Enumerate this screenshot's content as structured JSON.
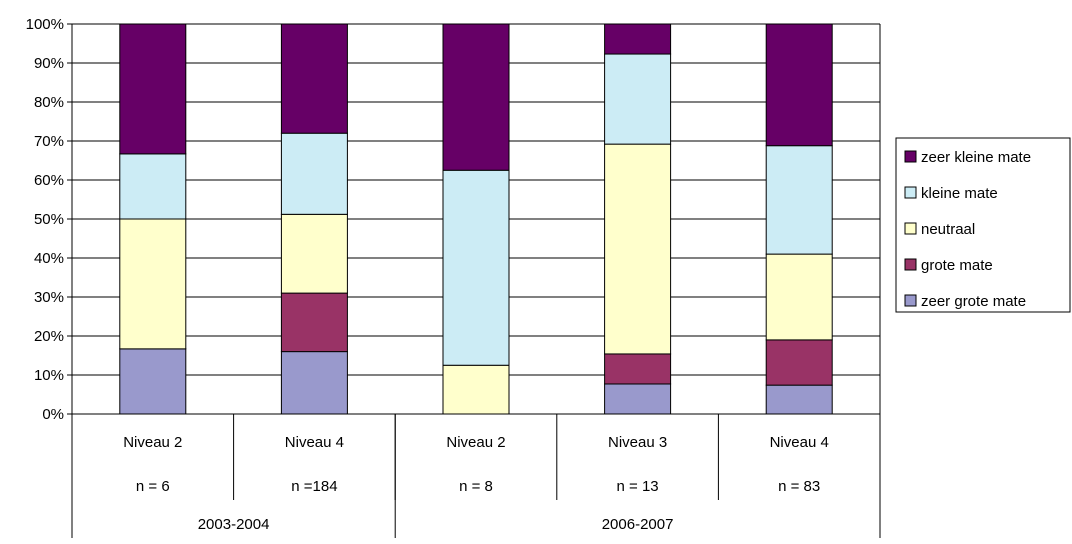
{
  "chart_data": {
    "type": "bar",
    "stacked": true,
    "percent_stacked": true,
    "categories": [
      {
        "level": "Niveau 2",
        "n": "n = 6",
        "period": "2003-2004"
      },
      {
        "level": "Niveau 4",
        "n": "n =184",
        "period": "2003-2004"
      },
      {
        "level": "Niveau 2",
        "n": "n = 8",
        "period": "2006-2007"
      },
      {
        "level": "Niveau 3",
        "n": "n = 13",
        "period": "2006-2007"
      },
      {
        "level": "Niveau 4",
        "n": "n = 83",
        "period": "2006-2007"
      }
    ],
    "groups": [
      {
        "label": "2003-2004",
        "count": 2
      },
      {
        "label": "2006-2007",
        "count": 3
      }
    ],
    "series": [
      {
        "name": "zeer grote mate",
        "color": "#9999cc",
        "values": [
          16.7,
          16.0,
          0,
          7.7,
          7.4
        ]
      },
      {
        "name": "grote mate",
        "color": "#993366",
        "values": [
          0,
          15.0,
          0,
          7.7,
          11.6
        ]
      },
      {
        "name": "neutraal",
        "color": "#ffffcc",
        "values": [
          33.3,
          20.2,
          12.5,
          53.8,
          22.0
        ]
      },
      {
        "name": "kleine mate",
        "color": "#ccecf5",
        "values": [
          16.7,
          20.8,
          50.0,
          23.1,
          27.8
        ]
      },
      {
        "name": "zeer kleine mate",
        "color": "#660066",
        "values": [
          33.3,
          28.0,
          37.5,
          7.7,
          31.2
        ]
      }
    ],
    "y_ticks": [
      "0%",
      "10%",
      "20%",
      "30%",
      "40%",
      "50%",
      "60%",
      "70%",
      "80%",
      "90%",
      "100%"
    ],
    "ylim": [
      0,
      100
    ],
    "grid": true,
    "legend_position": "right",
    "legend_order": [
      "zeer kleine mate",
      "kleine mate",
      "neutraal",
      "grote mate",
      "zeer grote mate"
    ]
  }
}
